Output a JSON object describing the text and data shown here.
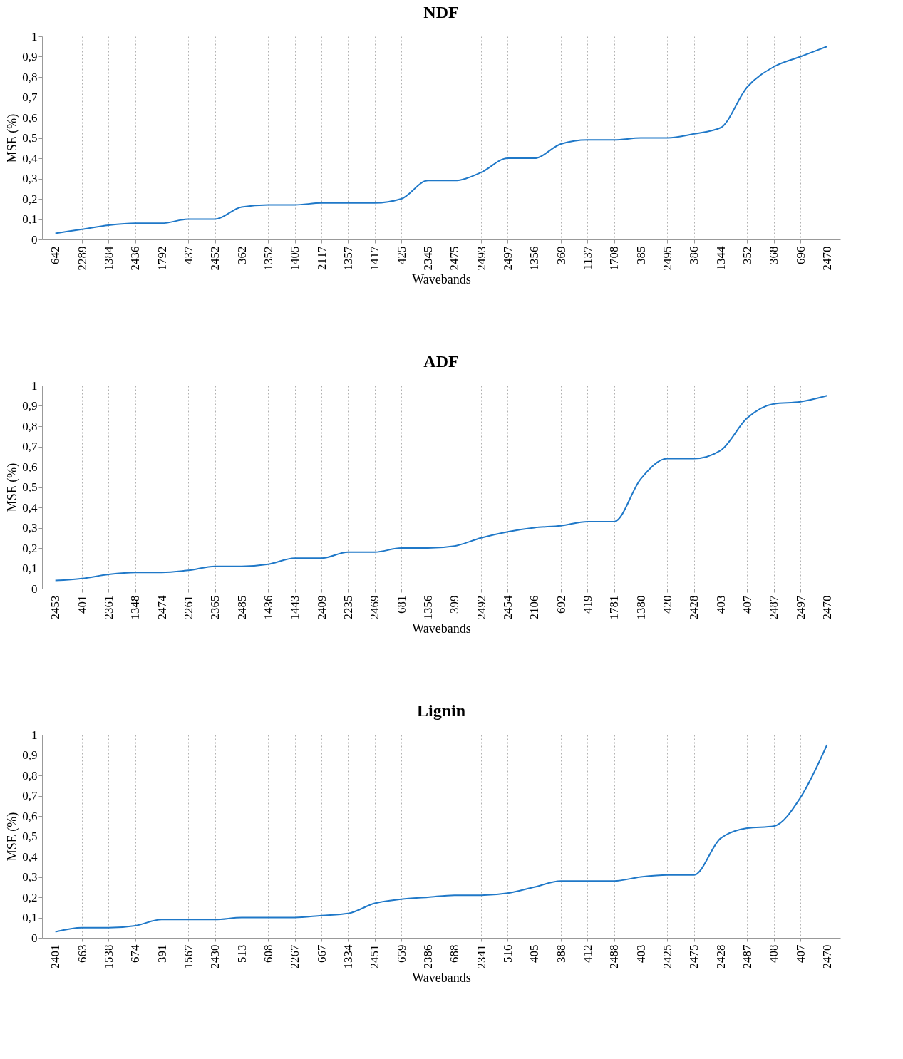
{
  "chart_data": [
    {
      "type": "line",
      "title": "NDF",
      "xlabel": "Wavebands",
      "ylabel": "MSE (%)",
      "grid": "x",
      "categories": [
        "642",
        "2289",
        "1384",
        "2436",
        "1792",
        "437",
        "2452",
        "362",
        "1352",
        "1405",
        "2117",
        "1357",
        "1417",
        "425",
        "2345",
        "2475",
        "2493",
        "2497",
        "1356",
        "369",
        "1137",
        "1708",
        "385",
        "2495",
        "386",
        "1344",
        "352",
        "368",
        "696",
        "2470"
      ],
      "series": [
        {
          "color": "#1f78c8",
          "values": [
            0.03,
            0.05,
            0.07,
            0.08,
            0.08,
            0.1,
            0.1,
            0.16,
            0.17,
            0.17,
            0.18,
            0.18,
            0.18,
            0.2,
            0.29,
            0.29,
            0.33,
            0.4,
            0.4,
            0.47,
            0.49,
            0.49,
            0.5,
            0.5,
            0.52,
            0.55,
            0.75,
            0.85,
            0.9,
            0.95
          ]
        }
      ],
      "ylim": [
        0,
        1
      ],
      "yticks": [
        {
          "value": 0,
          "label": "0"
        },
        {
          "value": 0.1,
          "label": "0,1"
        },
        {
          "value": 0.2,
          "label": "0,2"
        },
        {
          "value": 0.3,
          "label": "0,3"
        },
        {
          "value": 0.4,
          "label": "0,4"
        },
        {
          "value": 0.5,
          "label": "0,5"
        },
        {
          "value": 0.6,
          "label": "0,6"
        },
        {
          "value": 0.7,
          "label": "0,7"
        },
        {
          "value": 0.8,
          "label": "0,8"
        },
        {
          "value": 0.9,
          "label": "0,9"
        },
        {
          "value": 1,
          "label": "1"
        }
      ]
    },
    {
      "type": "line",
      "title": "ADF",
      "xlabel": "Wavebands",
      "ylabel": "MSE (%)",
      "grid": "x",
      "categories": [
        "2453",
        "401",
        "2361",
        "1348",
        "2474",
        "2261",
        "2365",
        "2485",
        "1436",
        "1443",
        "2409",
        "2235",
        "2469",
        "681",
        "1356",
        "399",
        "2492",
        "2454",
        "2106",
        "692",
        "419",
        "1781",
        "1380",
        "420",
        "2428",
        "403",
        "407",
        "2487",
        "2497",
        "2470"
      ],
      "series": [
        {
          "color": "#1f78c8",
          "values": [
            0.04,
            0.05,
            0.07,
            0.08,
            0.08,
            0.09,
            0.11,
            0.11,
            0.12,
            0.15,
            0.15,
            0.18,
            0.18,
            0.2,
            0.2,
            0.21,
            0.25,
            0.28,
            0.3,
            0.31,
            0.33,
            0.33,
            0.54,
            0.64,
            0.64,
            0.68,
            0.84,
            0.91,
            0.92,
            0.95
          ]
        }
      ],
      "ylim": [
        0,
        1
      ],
      "yticks": [
        {
          "value": 0,
          "label": "0"
        },
        {
          "value": 0.1,
          "label": "0,1"
        },
        {
          "value": 0.2,
          "label": "0,2"
        },
        {
          "value": 0.3,
          "label": "0,3"
        },
        {
          "value": 0.4,
          "label": "0,4"
        },
        {
          "value": 0.5,
          "label": "0,5"
        },
        {
          "value": 0.6,
          "label": "0,6"
        },
        {
          "value": 0.7,
          "label": "0,7"
        },
        {
          "value": 0.8,
          "label": "0,8"
        },
        {
          "value": 0.9,
          "label": "0,9"
        },
        {
          "value": 1,
          "label": "1"
        }
      ]
    },
    {
      "type": "line",
      "title": "Lignin",
      "xlabel": "Wavebands",
      "ylabel": "MSE (%)",
      "grid": "x",
      "categories": [
        "2401",
        "663",
        "1538",
        "674",
        "391",
        "1567",
        "2430",
        "513",
        "608",
        "2267",
        "667",
        "1334",
        "2451",
        "659",
        "2386",
        "688",
        "2341",
        "516",
        "405",
        "388",
        "412",
        "2488",
        "403",
        "2425",
        "2475",
        "2428",
        "2487",
        "408",
        "407",
        "2470"
      ],
      "series": [
        {
          "color": "#1f78c8",
          "values": [
            0.03,
            0.05,
            0.05,
            0.06,
            0.09,
            0.09,
            0.09,
            0.1,
            0.1,
            0.1,
            0.11,
            0.12,
            0.17,
            0.19,
            0.2,
            0.21,
            0.21,
            0.22,
            0.25,
            0.28,
            0.28,
            0.28,
            0.3,
            0.31,
            0.31,
            0.49,
            0.54,
            0.55,
            0.69,
            0.95
          ]
        }
      ],
      "ylim": [
        0,
        1
      ],
      "yticks": [
        {
          "value": 0,
          "label": "0"
        },
        {
          "value": 0.1,
          "label": "0,1"
        },
        {
          "value": 0.2,
          "label": "0,2"
        },
        {
          "value": 0.3,
          "label": "0,3"
        },
        {
          "value": 0.4,
          "label": "0,4"
        },
        {
          "value": 0.5,
          "label": "0,5"
        },
        {
          "value": 0.6,
          "label": "0,6"
        },
        {
          "value": 0.7,
          "label": "0,7"
        },
        {
          "value": 0.8,
          "label": "0,8"
        },
        {
          "value": 0.9,
          "label": "0,9"
        },
        {
          "value": 1,
          "label": "1"
        }
      ]
    }
  ]
}
